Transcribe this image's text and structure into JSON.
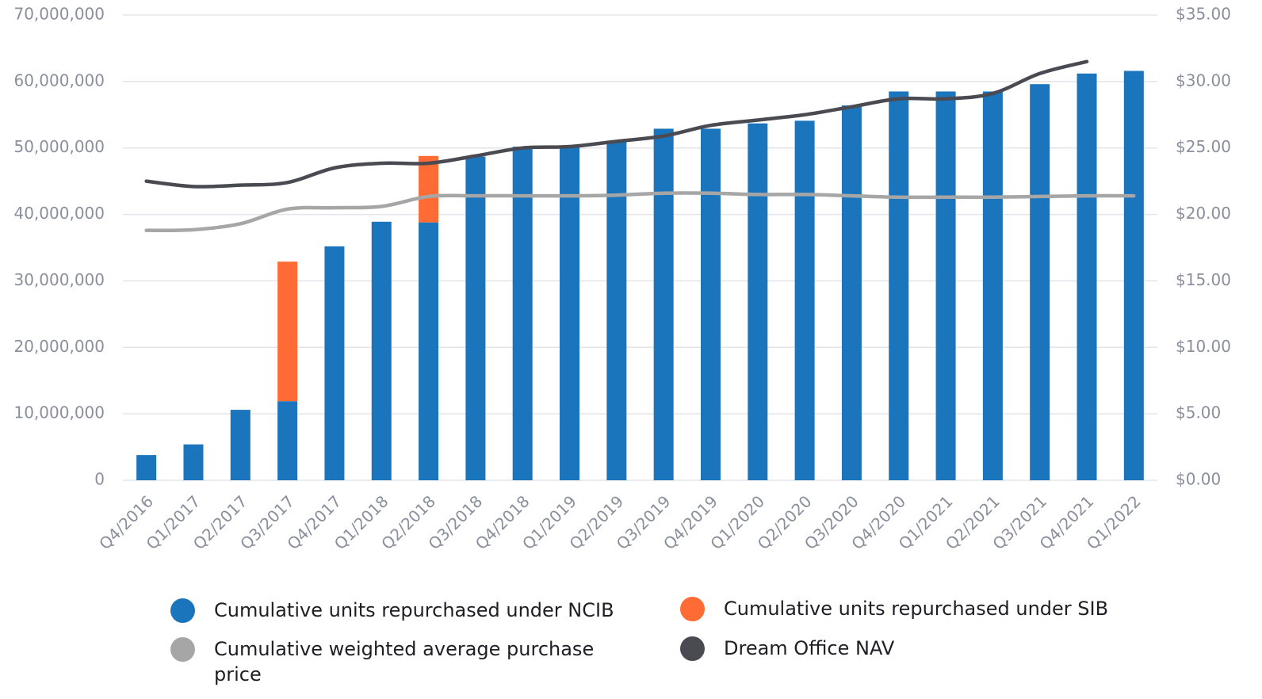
{
  "chart_data": {
    "type": "bar",
    "categories": [
      "Q4/2016",
      "Q1/2017",
      "Q2/2017",
      "Q3/2017",
      "Q4/2017",
      "Q1/2018",
      "Q2/2018",
      "Q3/2018",
      "Q4/2018",
      "Q1/2019",
      "Q2/2019",
      "Q3/2019",
      "Q4/2019",
      "Q1/2020",
      "Q2/2020",
      "Q3/2020",
      "Q4/2020",
      "Q1/2021",
      "Q2/2021",
      "Q3/2021",
      "Q4/2021",
      "Q1/2022"
    ],
    "stacked": true,
    "series": [
      {
        "name": "Cumulative units repurchased under NCIB",
        "color": "#1b75bc",
        "type": "bar",
        "values": [
          3800000,
          5400000,
          10600000,
          11900000,
          35200000,
          38900000,
          38800000,
          48700000,
          50200000,
          50300000,
          51000000,
          52900000,
          52900000,
          53700000,
          54100000,
          56400000,
          58500000,
          58500000,
          58500000,
          59600000,
          61200000,
          61600000
        ]
      },
      {
        "name": "Cumulative units repurchased under SIB",
        "color": "#ff6b35",
        "type": "bar",
        "values": [
          0,
          0,
          0,
          21000000,
          0,
          0,
          10000000,
          0,
          0,
          0,
          0,
          0,
          0,
          0,
          0,
          0,
          0,
          0,
          0,
          0,
          0,
          0
        ]
      },
      {
        "name": "Cumulative weighted average purchase price",
        "color": "#a6a6a6",
        "type": "line",
        "axis": "y2",
        "values": [
          18.8,
          18.85,
          19.3,
          20.4,
          20.5,
          20.6,
          21.35,
          21.4,
          21.4,
          21.4,
          21.45,
          21.6,
          21.6,
          21.5,
          21.5,
          21.4,
          21.3,
          21.3,
          21.3,
          21.35,
          21.4,
          21.4
        ]
      },
      {
        "name": "Dream Office NAV",
        "color": "#4a4a52",
        "type": "line",
        "axis": "y2",
        "values": [
          22.5,
          22.1,
          22.2,
          22.4,
          23.5,
          23.85,
          23.85,
          24.4,
          25.0,
          25.1,
          25.5,
          25.9,
          26.7,
          27.1,
          27.5,
          28.1,
          28.7,
          28.7,
          29.1,
          30.6,
          31.5,
          null
        ]
      }
    ],
    "ylim": [
      0,
      70000000
    ],
    "yticks": [
      0,
      {
        "value": 10000000,
        "label": "10,000,000"
      },
      {
        "value": 20000000,
        "label": "20,000,000"
      },
      {
        "value": 30000000,
        "label": "30,000,000"
      },
      {
        "value": 40000000,
        "label": "40,000,000"
      },
      {
        "value": 50000000,
        "label": "50,000,000"
      },
      {
        "value": 60000000,
        "label": "60,000,000"
      },
      {
        "value": 70000000,
        "label": "70,000,000"
      }
    ],
    "y2lim": [
      0,
      35
    ],
    "y2ticks": [
      {
        "value": 0,
        "label": "$0.00"
      },
      {
        "value": 5,
        "label": "$5.00"
      },
      {
        "value": 10,
        "label": "$10.00"
      },
      {
        "value": 15,
        "label": "$15.00"
      },
      {
        "value": 20,
        "label": "$20.00"
      },
      {
        "value": 25,
        "label": "$25.00"
      },
      {
        "value": 30,
        "label": "$30.00"
      },
      {
        "value": 35,
        "label": "$35.00"
      }
    ],
    "grid": true,
    "legend": "bottom"
  }
}
